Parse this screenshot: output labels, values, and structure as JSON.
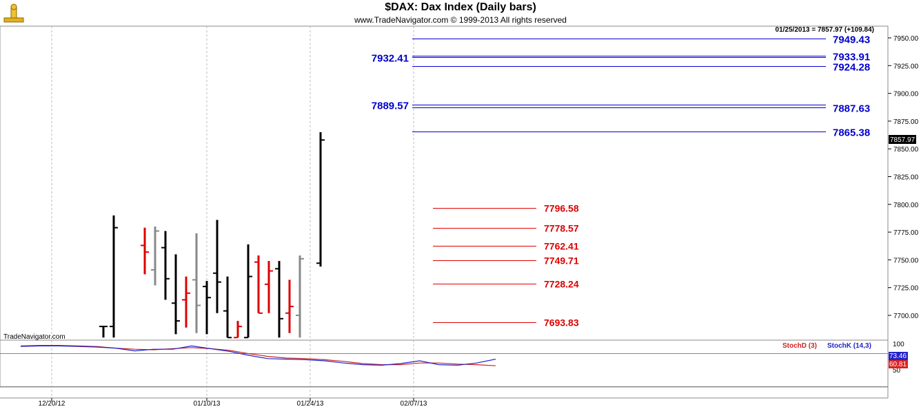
{
  "header": {
    "title": "$DAX:  Dax Index  (Daily bars)",
    "subtitle": "www.TradeNavigator.com © 1999-2013 All rights reserved"
  },
  "price_panel": {
    "last_info": "01/25/2013 = 7857.97 (+109.84)",
    "last_price_badge": "7857.97",
    "watermark": "TradeNavigator.com"
  },
  "stoch_panel": {
    "legend_d": "StochD (3)",
    "legend_k": "StochK (14,3)",
    "level_label": "100",
    "level_label_low": "50",
    "k_badge": "73.46",
    "d_badge": "60.81"
  },
  "colors": {
    "blue_level": "#0000cc",
    "red_level": "#dd0000",
    "bar_black": "#000000",
    "bar_red": "#dd0000",
    "bar_gray": "#888888",
    "bar_green": "#22cc22",
    "stoch_k": "#2222cc",
    "stoch_d": "#cc2222"
  },
  "chart_data": {
    "type": "ohlc",
    "ylim": [
      7680,
      7962
    ],
    "y_ticks": [
      "7950.00",
      "7925.00",
      "7900.00",
      "7875.00",
      "7850.00",
      "7825.00",
      "7800.00",
      "7775.00",
      "7750.00",
      "7725.00",
      "7700.00"
    ],
    "x_tick_labels": [
      "12/20/12",
      "01/10/13",
      "01/24/13",
      "02/07/13"
    ],
    "bars": [
      {
        "date": "12/27/12",
        "open": 7690,
        "high": 7690,
        "low": 7680,
        "close": 7690,
        "color": "black"
      },
      {
        "date": "12/28/12",
        "open": 7690,
        "high": 7790,
        "low": 7680,
        "close": 7779,
        "color": "black"
      },
      {
        "date": "01/02/13",
        "open": 7763,
        "high": 7779,
        "low": 7737,
        "close": 7757,
        "color": "red"
      },
      {
        "date": "01/03/13",
        "open": 7741,
        "high": 7780,
        "low": 7727,
        "close": 7776,
        "color": "gray"
      },
      {
        "date": "01/04/13",
        "open": 7761,
        "high": 7776,
        "low": 7714,
        "close": 7733,
        "color": "black"
      },
      {
        "date": "01/07/13",
        "open": 7711,
        "high": 7755,
        "low": 7683,
        "close": 7695,
        "color": "black"
      },
      {
        "date": "01/08/13",
        "open": 7714,
        "high": 7735,
        "low": 7689,
        "close": 7720,
        "color": "red"
      },
      {
        "date": "01/09/13",
        "open": 7732,
        "high": 7774,
        "low": 7684,
        "close": 7709,
        "color": "gray"
      },
      {
        "date": "01/10/13",
        "open": 7726,
        "high": 7731,
        "low": 7683,
        "close": 7716,
        "color": "black"
      },
      {
        "date": "01/11/13",
        "open": 7738,
        "high": 7786,
        "low": 7702,
        "close": 7730,
        "color": "black"
      },
      {
        "date": "01/14/13",
        "open": 7704,
        "high": 7735,
        "low": 7680,
        "close": 7680,
        "color": "black"
      },
      {
        "date": "01/15/13",
        "open": 7680,
        "high": 7695,
        "low": 7680,
        "close": 7690,
        "color": "red"
      },
      {
        "date": "01/16/13",
        "open": 7680,
        "high": 7764,
        "low": 7680,
        "close": 7735,
        "color": "black"
      },
      {
        "date": "01/17/13",
        "open": 7748,
        "high": 7754,
        "low": 7702,
        "close": 7702,
        "color": "red"
      },
      {
        "date": "01/18/13",
        "open": 7728,
        "high": 7749,
        "low": 7702,
        "close": 7740,
        "color": "red"
      },
      {
        "date": "01/21/13",
        "open": 7742,
        "high": 7749,
        "low": 7680,
        "close": 7697,
        "color": "black"
      },
      {
        "date": "01/22/13",
        "open": 7702,
        "high": 7732,
        "low": 7684,
        "close": 7708,
        "color": "red"
      },
      {
        "date": "01/23/13",
        "open": 7700,
        "high": 7754,
        "low": 7680,
        "close": 7751,
        "color": "gray"
      },
      {
        "date": "01/25/13",
        "open": 7747,
        "high": 7865,
        "low": 7744,
        "close": 7858,
        "color": "black"
      }
    ],
    "blue_levels": [
      {
        "value": 7949.43,
        "label": "7949.43",
        "side": "right"
      },
      {
        "value": 7933.91,
        "label": "7933.91",
        "side": "right"
      },
      {
        "value": 7932.41,
        "label": "7932.41",
        "side": "left"
      },
      {
        "value": 7924.28,
        "label": "7924.28",
        "side": "right"
      },
      {
        "value": 7889.57,
        "label": "7889.57",
        "side": "left"
      },
      {
        "value": 7887.63,
        "label": "7887.63",
        "side": "right"
      },
      {
        "value": 7865.38,
        "label": "7865.38",
        "side": "right"
      }
    ],
    "red_levels": [
      {
        "value": 7796.58,
        "label": "7796.58"
      },
      {
        "value": 7778.57,
        "label": "7778.57"
      },
      {
        "value": 7762.41,
        "label": "7762.41"
      },
      {
        "value": 7749.71,
        "label": "7749.71"
      },
      {
        "value": 7728.24,
        "label": "7728.24"
      },
      {
        "value": 7693.83,
        "label": "7693.83"
      }
    ],
    "stoch_k": [
      96,
      97,
      97,
      96,
      95,
      93,
      88,
      91,
      91,
      97,
      92,
      87,
      80,
      74,
      73,
      72,
      70,
      66,
      63,
      62,
      65,
      70,
      63,
      62,
      66,
      73
    ],
    "stoch_d": [
      97,
      98,
      98,
      97,
      96,
      93,
      91,
      90,
      92,
      94,
      92,
      89,
      83,
      78,
      75,
      74,
      72,
      69,
      65,
      63,
      63,
      66,
      66,
      64,
      63,
      61
    ]
  }
}
